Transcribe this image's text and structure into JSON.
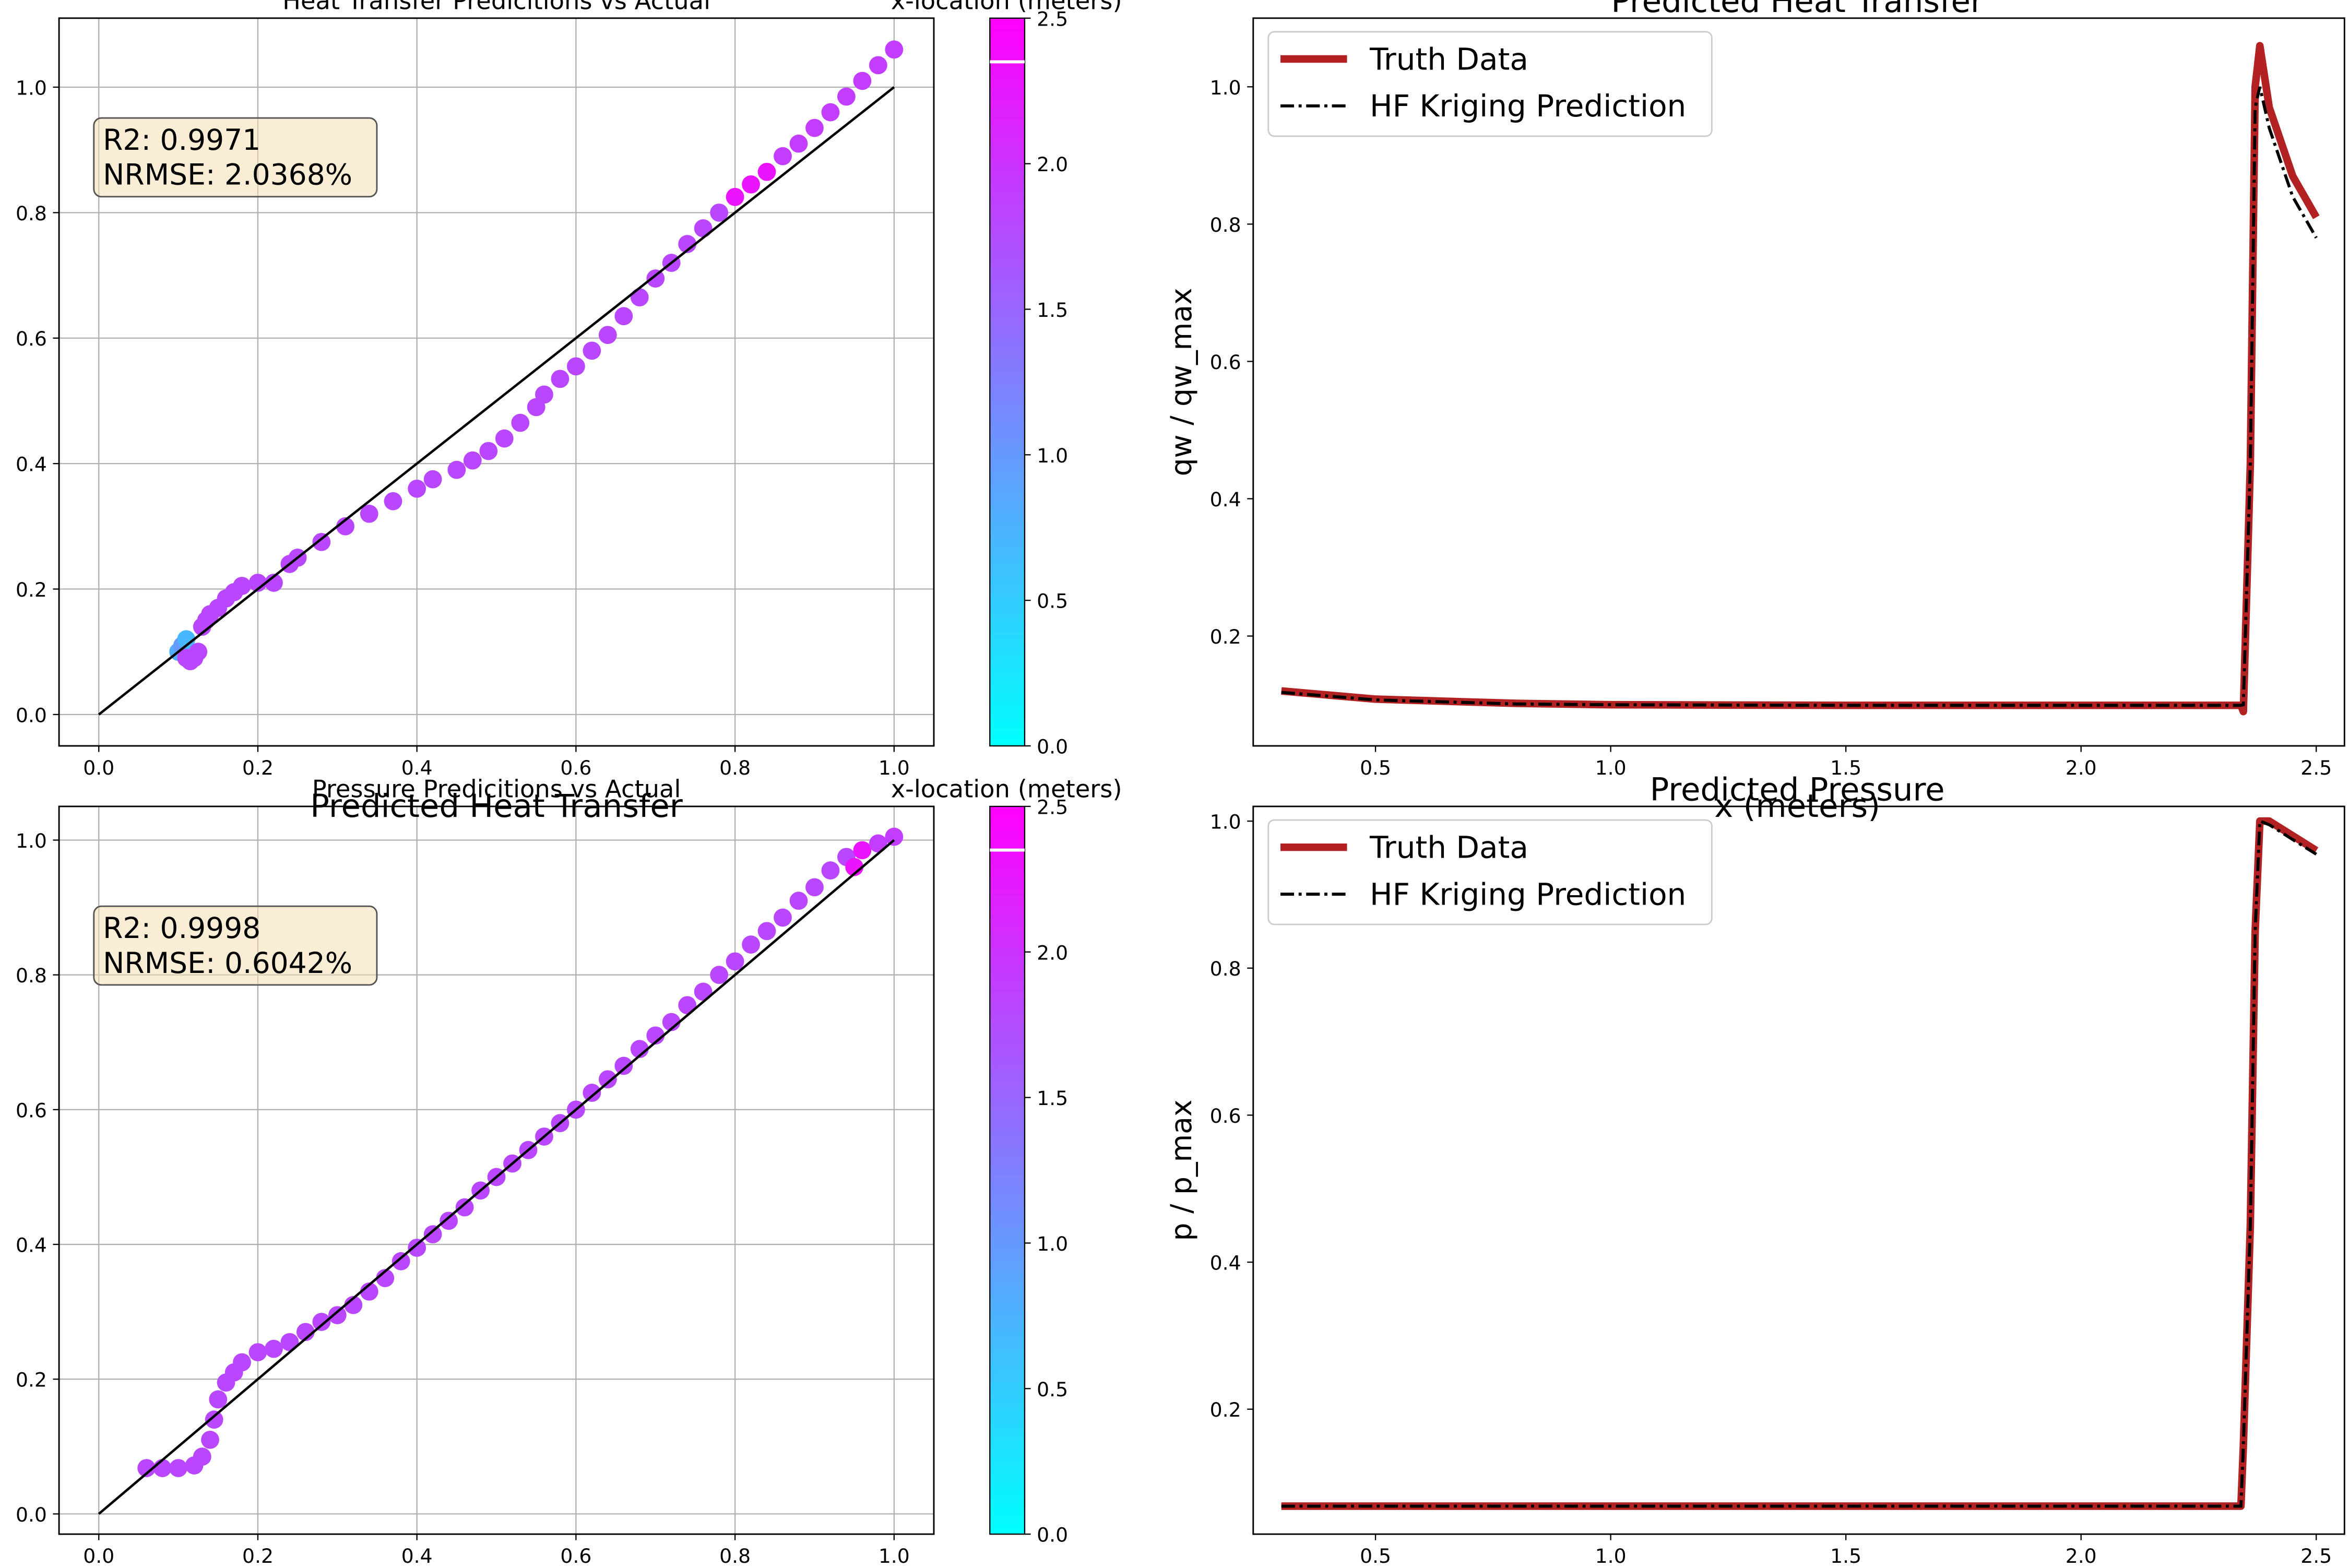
{
  "chart_data": [
    {
      "type": "scatter",
      "title": "Heat Transfer Predicitions vs Actual",
      "xlim": [
        -0.05,
        1.05
      ],
      "ylim": [
        -0.05,
        1.11
      ],
      "xticks": [
        "0.0",
        "0.2",
        "0.4",
        "0.6",
        "0.8",
        "1.0"
      ],
      "yticks": [
        "0.0",
        "0.2",
        "0.4",
        "0.6",
        "0.8",
        "1.0"
      ],
      "grid": true,
      "annotation": [
        "R2: 0.9971",
        "NRMSE: 2.0368%"
      ],
      "colorbar": {
        "label": "x-location (meters)",
        "range": [
          0,
          2.5
        ],
        "ticks": [
          "0.0",
          "0.5",
          "1.0",
          "1.5",
          "2.0",
          "2.5"
        ],
        "colormap": [
          "#00ffff",
          "#ff00ff"
        ],
        "marker_at": 2.35
      },
      "reference_line": [
        [
          0,
          0
        ],
        [
          1,
          1
        ]
      ],
      "points": [
        [
          0.1,
          0.1,
          0.8
        ],
        [
          0.105,
          0.11,
          1.0
        ],
        [
          0.11,
          0.12,
          0.7
        ],
        [
          0.11,
          0.09,
          1.8
        ],
        [
          0.115,
          0.085,
          1.8
        ],
        [
          0.12,
          0.09,
          1.8
        ],
        [
          0.125,
          0.1,
          1.8
        ],
        [
          0.13,
          0.14,
          1.8
        ],
        [
          0.135,
          0.15,
          1.8
        ],
        [
          0.14,
          0.16,
          1.8
        ],
        [
          0.15,
          0.17,
          1.8
        ],
        [
          0.16,
          0.185,
          1.8
        ],
        [
          0.17,
          0.195,
          1.8
        ],
        [
          0.18,
          0.205,
          1.8
        ],
        [
          0.2,
          0.21,
          1.8
        ],
        [
          0.22,
          0.21,
          1.8
        ],
        [
          0.24,
          0.24,
          1.8
        ],
        [
          0.25,
          0.25,
          1.8
        ],
        [
          0.28,
          0.275,
          1.8
        ],
        [
          0.31,
          0.3,
          1.8
        ],
        [
          0.34,
          0.32,
          1.8
        ],
        [
          0.37,
          0.34,
          1.8
        ],
        [
          0.4,
          0.36,
          1.8
        ],
        [
          0.42,
          0.375,
          1.8
        ],
        [
          0.45,
          0.39,
          1.8
        ],
        [
          0.47,
          0.405,
          1.8
        ],
        [
          0.49,
          0.42,
          1.8
        ],
        [
          0.51,
          0.44,
          1.8
        ],
        [
          0.53,
          0.465,
          1.8
        ],
        [
          0.55,
          0.49,
          1.8
        ],
        [
          0.56,
          0.51,
          1.8
        ],
        [
          0.58,
          0.535,
          1.8
        ],
        [
          0.6,
          0.555,
          1.8
        ],
        [
          0.62,
          0.58,
          1.8
        ],
        [
          0.64,
          0.605,
          1.8
        ],
        [
          0.66,
          0.635,
          1.8
        ],
        [
          0.68,
          0.665,
          1.8
        ],
        [
          0.7,
          0.695,
          1.8
        ],
        [
          0.72,
          0.72,
          1.8
        ],
        [
          0.74,
          0.75,
          1.8
        ],
        [
          0.76,
          0.775,
          1.8
        ],
        [
          0.78,
          0.8,
          1.8
        ],
        [
          0.8,
          0.825,
          2.3
        ],
        [
          0.82,
          0.845,
          2.3
        ],
        [
          0.84,
          0.865,
          2.3
        ],
        [
          0.86,
          0.89,
          1.9
        ],
        [
          0.88,
          0.91,
          1.9
        ],
        [
          0.9,
          0.935,
          1.9
        ],
        [
          0.92,
          0.96,
          1.9
        ],
        [
          0.94,
          0.985,
          1.9
        ],
        [
          0.96,
          1.01,
          1.9
        ],
        [
          0.98,
          1.035,
          1.9
        ],
        [
          1.0,
          1.06,
          1.9
        ]
      ]
    },
    {
      "type": "line",
      "title": "Predicted Heat Transfer",
      "xlabel": "x (meters)",
      "ylabel": "qw / qw_max",
      "xlim": [
        0.24,
        2.56
      ],
      "ylim": [
        0.04,
        1.1
      ],
      "xticks": [
        "0.5",
        "1.0",
        "1.5",
        "2.0",
        "2.5"
      ],
      "yticks": [
        "0.2",
        "0.4",
        "0.6",
        "0.8",
        "1.0"
      ],
      "legend": {
        "placement": "top-left"
      },
      "series": [
        {
          "name": "Truth Data",
          "color": "#b22222",
          "x": [
            0.3,
            0.5,
            0.8,
            1.0,
            1.5,
            2.0,
            2.2,
            2.34,
            2.345,
            2.36,
            2.37,
            2.38,
            2.4,
            2.45,
            2.5
          ],
          "y": [
            0.12,
            0.108,
            0.102,
            0.1,
            0.099,
            0.099,
            0.099,
            0.099,
            0.09,
            0.45,
            1.0,
            1.06,
            0.97,
            0.87,
            0.81
          ]
        },
        {
          "name": "HF Kriging Prediction",
          "color": "#000000",
          "x": [
            0.3,
            0.5,
            0.8,
            1.0,
            1.5,
            2.0,
            2.2,
            2.34,
            2.345,
            2.36,
            2.37,
            2.38,
            2.4,
            2.45,
            2.5
          ],
          "y": [
            0.118,
            0.107,
            0.101,
            0.1,
            0.099,
            0.099,
            0.099,
            0.099,
            0.1,
            0.45,
            0.97,
            1.0,
            0.94,
            0.84,
            0.78
          ]
        }
      ]
    },
    {
      "type": "scatter",
      "title": "Pressure Predicitions vs Actual",
      "xlim": [
        -0.05,
        1.05
      ],
      "ylim": [
        -0.03,
        1.05
      ],
      "xticks": [
        "0.0",
        "0.2",
        "0.4",
        "0.6",
        "0.8",
        "1.0"
      ],
      "yticks": [
        "0.0",
        "0.2",
        "0.4",
        "0.6",
        "0.8",
        "1.0"
      ],
      "grid": true,
      "annotation": [
        "R2: 0.9998",
        "NRMSE: 0.6042%"
      ],
      "colorbar": {
        "label": "x-location (meters)",
        "range": [
          0,
          2.5
        ],
        "ticks": [
          "0.0",
          "0.5",
          "1.0",
          "1.5",
          "2.0",
          "2.5"
        ],
        "colormap": [
          "#00ffff",
          "#ff00ff"
        ],
        "marker_at": 2.35
      },
      "reference_line": [
        [
          0,
          0
        ],
        [
          1,
          1
        ]
      ],
      "points": [
        [
          0.06,
          0.068,
          1.8
        ],
        [
          0.08,
          0.068,
          1.8
        ],
        [
          0.1,
          0.068,
          1.8
        ],
        [
          0.12,
          0.072,
          1.8
        ],
        [
          0.13,
          0.085,
          1.8
        ],
        [
          0.14,
          0.11,
          1.8
        ],
        [
          0.145,
          0.14,
          1.8
        ],
        [
          0.15,
          0.17,
          1.8
        ],
        [
          0.16,
          0.195,
          1.8
        ],
        [
          0.17,
          0.21,
          1.8
        ],
        [
          0.18,
          0.225,
          1.8
        ],
        [
          0.2,
          0.24,
          1.8
        ],
        [
          0.22,
          0.245,
          1.8
        ],
        [
          0.24,
          0.255,
          1.8
        ],
        [
          0.26,
          0.27,
          1.8
        ],
        [
          0.28,
          0.285,
          1.8
        ],
        [
          0.3,
          0.295,
          1.8
        ],
        [
          0.32,
          0.31,
          1.8
        ],
        [
          0.34,
          0.33,
          1.8
        ],
        [
          0.36,
          0.35,
          1.8
        ],
        [
          0.38,
          0.375,
          1.8
        ],
        [
          0.4,
          0.395,
          1.8
        ],
        [
          0.42,
          0.415,
          1.8
        ],
        [
          0.44,
          0.435,
          1.8
        ],
        [
          0.46,
          0.455,
          1.8
        ],
        [
          0.48,
          0.48,
          1.8
        ],
        [
          0.5,
          0.5,
          1.8
        ],
        [
          0.52,
          0.52,
          1.8
        ],
        [
          0.54,
          0.54,
          1.8
        ],
        [
          0.56,
          0.56,
          1.8
        ],
        [
          0.58,
          0.58,
          1.8
        ],
        [
          0.6,
          0.6,
          1.8
        ],
        [
          0.62,
          0.625,
          1.8
        ],
        [
          0.64,
          0.645,
          1.8
        ],
        [
          0.66,
          0.665,
          1.8
        ],
        [
          0.68,
          0.69,
          1.8
        ],
        [
          0.7,
          0.71,
          1.8
        ],
        [
          0.72,
          0.73,
          1.8
        ],
        [
          0.74,
          0.755,
          1.8
        ],
        [
          0.76,
          0.775,
          1.8
        ],
        [
          0.78,
          0.8,
          1.8
        ],
        [
          0.8,
          0.82,
          1.8
        ],
        [
          0.82,
          0.845,
          1.8
        ],
        [
          0.84,
          0.865,
          1.8
        ],
        [
          0.86,
          0.885,
          1.8
        ],
        [
          0.88,
          0.91,
          1.8
        ],
        [
          0.9,
          0.93,
          1.8
        ],
        [
          0.92,
          0.955,
          1.8
        ],
        [
          0.94,
          0.975,
          1.8
        ],
        [
          0.95,
          0.96,
          2.3
        ],
        [
          0.96,
          0.985,
          2.3
        ],
        [
          0.98,
          0.995,
          1.9
        ],
        [
          1.0,
          1.005,
          1.9
        ]
      ]
    },
    {
      "type": "line",
      "title": "Predicted Pressure",
      "xlim": [
        0.24,
        2.56
      ],
      "ylim": [
        0.03,
        1.02
      ],
      "xticks": [
        "0.5",
        "1.0",
        "1.5",
        "2.0",
        "2.5"
      ],
      "yticks": [
        "0.2",
        "0.4",
        "0.6",
        "0.8",
        "1.0"
      ],
      "ylabel": "p / p_max",
      "legend": {
        "placement": "top-left"
      },
      "series": [
        {
          "name": "Truth Data",
          "color": "#b22222",
          "x": [
            0.3,
            1.0,
            2.0,
            2.34,
            2.345,
            2.36,
            2.37,
            2.38,
            2.4,
            2.45,
            2.5
          ],
          "y": [
            0.068,
            0.068,
            0.068,
            0.068,
            0.15,
            0.45,
            0.85,
            1.0,
            1.0,
            0.98,
            0.96
          ]
        },
        {
          "name": "HF Kriging Prediction",
          "color": "#000000",
          "x": [
            0.3,
            1.0,
            2.0,
            2.34,
            2.345,
            2.36,
            2.37,
            2.38,
            2.4,
            2.45,
            2.5
          ],
          "y": [
            0.068,
            0.068,
            0.068,
            0.068,
            0.15,
            0.45,
            0.85,
            1.0,
            0.995,
            0.975,
            0.955
          ]
        }
      ]
    }
  ]
}
